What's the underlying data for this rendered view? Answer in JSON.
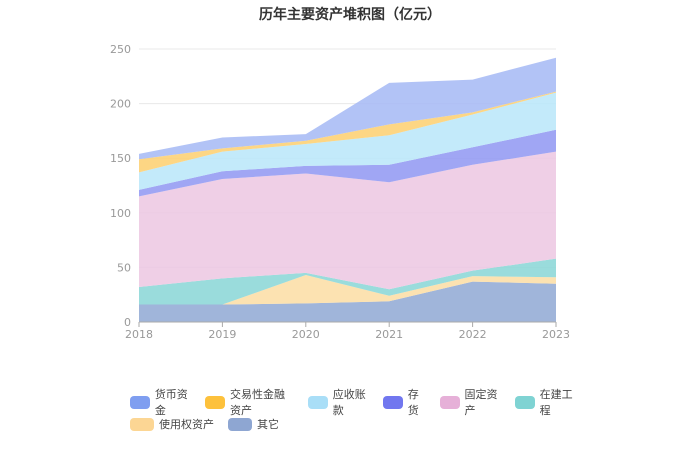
{
  "chart_data": {
    "type": "area",
    "stacked": true,
    "title": "历年主要资产堆积图（亿元）",
    "x": [
      "2018",
      "2019",
      "2020",
      "2021",
      "2022",
      "2023"
    ],
    "ylim": [
      0,
      250
    ],
    "yticks": [
      0,
      50,
      100,
      150,
      200,
      250
    ],
    "grid": true,
    "legend_position": "bottom",
    "series": [
      {
        "name": "其它",
        "color": "#8fa8d4",
        "values": [
          16,
          16,
          17,
          19,
          37,
          35
        ]
      },
      {
        "name": "使用权资产",
        "color": "#fcdda3",
        "values": [
          0,
          0,
          26,
          5,
          5,
          6
        ]
      },
      {
        "name": "在建工程",
        "color": "#88d6d6",
        "values": [
          16,
          24,
          2,
          6,
          5,
          17
        ]
      },
      {
        "name": "固定资产",
        "color": "#ecc7e2",
        "values": [
          83,
          91,
          91,
          98,
          97,
          98
        ]
      },
      {
        "name": "存货",
        "color": "#8f96f2",
        "values": [
          6,
          7,
          7,
          16,
          16,
          20
        ]
      },
      {
        "name": "应收账款",
        "color": "#b9e6f9",
        "values": [
          16,
          18,
          20,
          27,
          30,
          34
        ]
      },
      {
        "name": "交易性金融资产",
        "color": "#fdcf6e",
        "values": [
          12,
          3,
          3,
          10,
          2,
          1
        ]
      },
      {
        "name": "货币资金",
        "color": "#a4b8f4",
        "values": [
          5,
          10,
          6,
          38,
          30,
          31
        ]
      }
    ]
  },
  "legend": {
    "rows": [
      [
        {
          "label": "货币资金",
          "color": "#7f9ef0"
        },
        {
          "label": "交易性金融资产",
          "color": "#fdc13c"
        },
        {
          "label": "应收账款",
          "color": "#a9def7"
        },
        {
          "label": "存货",
          "color": "#7177ef"
        },
        {
          "label": "固定资产",
          "color": "#e6b0d8"
        },
        {
          "label": "在建工程",
          "color": "#7fd3d3"
        }
      ],
      [
        {
          "label": "使用权资产",
          "color": "#fcd694"
        },
        {
          "label": "其它",
          "color": "#8ea6d2"
        }
      ]
    ]
  }
}
